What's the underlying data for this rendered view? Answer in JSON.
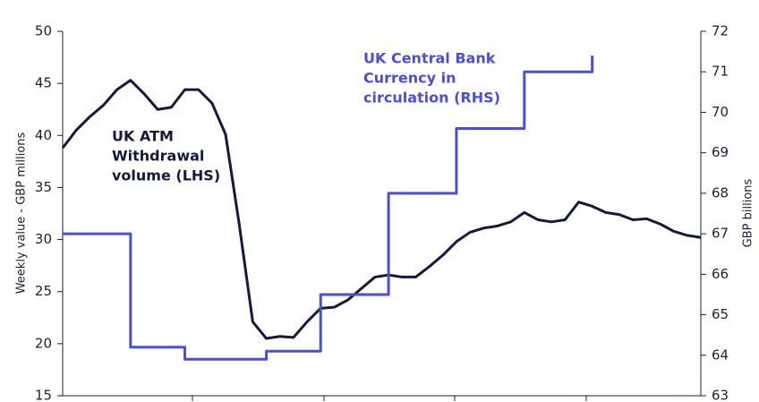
{
  "chart_data": {
    "type": "line",
    "categories": [
      null,
      null,
      null,
      null,
      null,
      null,
      null,
      null,
      null,
      null,
      null,
      null,
      null,
      null,
      null,
      null,
      null,
      null,
      null,
      null,
      null,
      null,
      null,
      null,
      null,
      null,
      null,
      null,
      null,
      null,
      null,
      null,
      null,
      null,
      null,
      null,
      null,
      null,
      null,
      null,
      null,
      null,
      null,
      null,
      null,
      null,
      null,
      null
    ],
    "ylabel": "Weekly value - GBP millions",
    "y2label": "GBP billions",
    "ylim": [
      15,
      50
    ],
    "yticks": [
      15,
      20,
      25,
      30,
      35,
      40,
      45,
      50
    ],
    "y2lim": [
      63,
      72
    ],
    "y2ticks": [
      63,
      64,
      65,
      66,
      67,
      68,
      69,
      70,
      71,
      72
    ],
    "series": [
      {
        "name": "UK ATM Withdrawal volume (LHS)",
        "color": "#151a3d",
        "axis": "y",
        "annotation": [
          "UK ATM",
          "Withdrawal",
          "volume (LHS)"
        ],
        "values": [
          38.8,
          40.5,
          41.8,
          42.9,
          44.4,
          45.3,
          44.0,
          42.5,
          42.7,
          44.4,
          44.4,
          43.1,
          40.1,
          31.5,
          22.1,
          20.5,
          20.7,
          20.6,
          22.1,
          23.4,
          23.5,
          24.2,
          25.3,
          26.4,
          26.6,
          26.4,
          26.4,
          27.4,
          28.5,
          29.8,
          30.7,
          31.1,
          31.3,
          31.7,
          32.6,
          31.9,
          31.7,
          31.9,
          33.6,
          33.2,
          32.6,
          32.4,
          31.9,
          32.0,
          31.5,
          30.8,
          30.4,
          30.2
        ]
      },
      {
        "name": "UK Central Bank Currency in circulation (RHS)",
        "color": "#4b4fd1",
        "axis": "y2",
        "step": true,
        "annotation": [
          "UK Central Bank",
          "Currency in",
          "circulation (RHS)"
        ],
        "values": [
          67,
          67,
          67,
          67,
          67,
          64.2,
          64.2,
          64.2,
          64.2,
          63.9,
          63.9,
          63.9,
          63.9,
          63.9,
          63.9,
          64.1,
          64.1,
          64.1,
          64.1,
          65.5,
          65.5,
          65.5,
          65.5,
          65.5,
          68,
          68,
          68,
          68,
          68,
          69.6,
          69.6,
          69.6,
          69.6,
          69.6,
          71,
          71,
          71,
          71,
          71,
          71.4,
          null,
          null,
          null,
          null,
          null,
          null,
          null,
          null
        ]
      }
    ]
  }
}
